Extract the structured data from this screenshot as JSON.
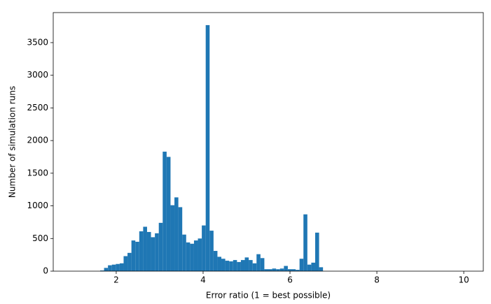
{
  "chart_data": {
    "type": "histogram",
    "x_label": "Error ratio (1 = best possible)",
    "y_label": "Number of simulation runs",
    "color": "#1f77b4",
    "bins": [
      1,
      1.09,
      1.18,
      1.27,
      1.36,
      1.45,
      1.54,
      1.63,
      1.72,
      1.81,
      1.9,
      1.99,
      2.08,
      2.17,
      2.26,
      2.35,
      2.44,
      2.53,
      2.62,
      2.71,
      2.8,
      2.89,
      2.98,
      3.07,
      3.16,
      3.25,
      3.34,
      3.43,
      3.52,
      3.61,
      3.7,
      3.79,
      3.88,
      3.97,
      4.06,
      4.15,
      4.24,
      4.33,
      4.42,
      4.51,
      4.6,
      4.69,
      4.78,
      4.87,
      4.96,
      5.05,
      5.14,
      5.23,
      5.32,
      5.41,
      5.5,
      5.59,
      5.68,
      5.77,
      5.86,
      5.95,
      6.04,
      6.13,
      6.22,
      6.31,
      6.4,
      6.49,
      6.58,
      6.67,
      6.76,
      6.85,
      6.94,
      7.03,
      7.12,
      7.21,
      7.3,
      7.39,
      7.48,
      7.57,
      7.66,
      7.75,
      7.84,
      7.93,
      8.02,
      8.11,
      8.2,
      8.29,
      8.38,
      8.47,
      8.56,
      8.65,
      8.74,
      8.83,
      8.92,
      9.01,
      9.1,
      9.19,
      9.28,
      9.37,
      9.46,
      9.55,
      9.64,
      9.73,
      9.82,
      9.91,
      10
    ],
    "values": [
      0,
      0,
      0,
      0,
      0,
      0,
      0,
      10,
      50,
      90,
      100,
      110,
      120,
      230,
      280,
      470,
      450,
      610,
      680,
      600,
      520,
      580,
      740,
      1830,
      1750,
      1010,
      1130,
      980,
      560,
      440,
      420,
      470,
      500,
      700,
      3768,
      620,
      310,
      220,
      190,
      160,
      150,
      170,
      140,
      170,
      210,
      170,
      120,
      260,
      200,
      30,
      30,
      40,
      30,
      40,
      80,
      30,
      30,
      20,
      190,
      870,
      100,
      130,
      590,
      60,
      0,
      0,
      0,
      0,
      0,
      0,
      0,
      0,
      0,
      0,
      0,
      0,
      0,
      0,
      0,
      0,
      0,
      0,
      0,
      0,
      0,
      0,
      0,
      0,
      0,
      0,
      0,
      0,
      0,
      0,
      0,
      0,
      0,
      0,
      0,
      0
    ],
    "xlim": [
      0.55,
      10.45
    ],
    "ylim": [
      0,
      3960
    ],
    "xticks": [
      2,
      4,
      6,
      8,
      10
    ],
    "yticks": [
      0,
      500,
      1000,
      1500,
      2000,
      2500,
      3000,
      3500
    ]
  }
}
